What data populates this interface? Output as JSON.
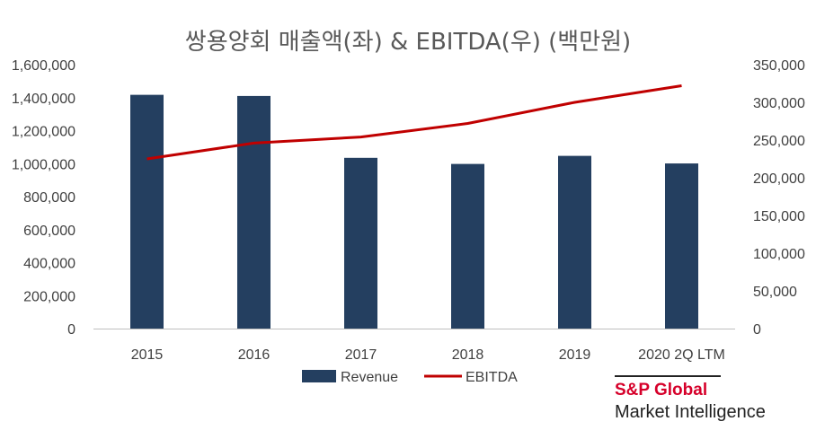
{
  "chart_data": {
    "type": "bar+line",
    "title": "쌍용양회 매출액(좌) & EBITDA(우) (백만원)",
    "categories": [
      "2015",
      "2016",
      "2017",
      "2018",
      "2019",
      "2020 2Q LTM"
    ],
    "series": [
      {
        "name": "Revenue",
        "type": "bar",
        "axis": "left",
        "values": [
          1417000,
          1410000,
          1035000,
          998000,
          1047000,
          1001000
        ]
      },
      {
        "name": "EBITDA",
        "type": "line",
        "axis": "right",
        "values": [
          225000,
          246000,
          254000,
          272000,
          300000,
          322000
        ]
      }
    ],
    "y_left": {
      "min": 0,
      "max": 1600000,
      "step": 200000,
      "ticks": [
        "0",
        "200,000",
        "400,000",
        "600,000",
        "800,000",
        "1,000,000",
        "1,200,000",
        "1,400,000",
        "1,600,000"
      ]
    },
    "y_right": {
      "min": 0,
      "max": 350000,
      "step": 50000,
      "ticks": [
        "0",
        "50,000",
        "100,000",
        "150,000",
        "200,000",
        "250,000",
        "300,000",
        "350,000"
      ]
    },
    "grid": false,
    "legend_position": "bottom",
    "colors": {
      "bar": "#243f60",
      "line": "#c00000",
      "axis": "#bfbfbf",
      "text": "#404040"
    }
  },
  "brand": {
    "line1": "S&P Global",
    "line2": "Market Intelligence"
  }
}
